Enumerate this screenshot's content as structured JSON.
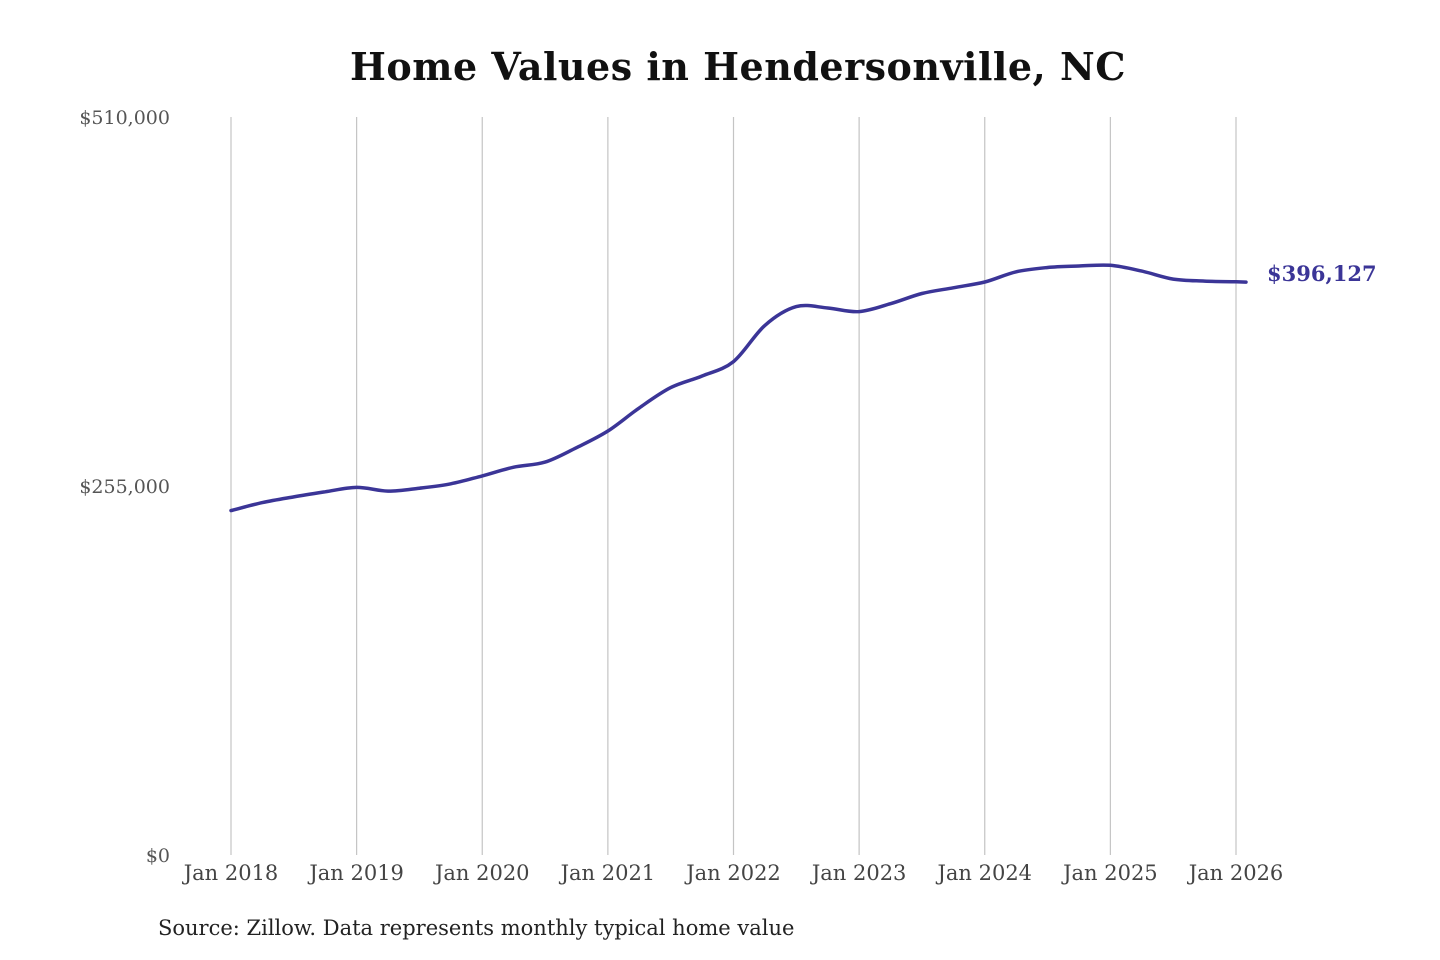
{
  "chart_data": {
    "type": "line",
    "title": "Home Values in Hendersonville, NC",
    "source": "Source: Zillow. Data represents monthly typical home value",
    "xlabel": "",
    "ylabel": "",
    "ylim": [
      0,
      510000
    ],
    "y_ticks": [
      {
        "value": 0,
        "label": "$0"
      },
      {
        "value": 255000,
        "label": "$255,000"
      },
      {
        "value": 510000,
        "label": "$510,000"
      }
    ],
    "x_ticks": [
      {
        "date": "2018-01",
        "label": "Jan 2018"
      },
      {
        "date": "2019-01",
        "label": "Jan 2019"
      },
      {
        "date": "2020-01",
        "label": "Jan 2020"
      },
      {
        "date": "2021-01",
        "label": "Jan 2021"
      },
      {
        "date": "2022-01",
        "label": "Jan 2022"
      },
      {
        "date": "2023-01",
        "label": "Jan 2023"
      },
      {
        "date": "2024-01",
        "label": "Jan 2024"
      },
      {
        "date": "2025-01",
        "label": "Jan 2025"
      },
      {
        "date": "2026-01",
        "label": "Jan 2026"
      }
    ],
    "grid": "vertical",
    "line_color": "#3b3597",
    "series": [
      {
        "name": "",
        "x": [
          "2018-01",
          "2018-04",
          "2018-07",
          "2018-10",
          "2019-01",
          "2019-04",
          "2019-07",
          "2019-10",
          "2020-01",
          "2020-04",
          "2020-07",
          "2020-10",
          "2021-01",
          "2021-04",
          "2021-07",
          "2021-10",
          "2022-01",
          "2022-04",
          "2022-07",
          "2022-10",
          "2023-01",
          "2023-04",
          "2023-07",
          "2023-10",
          "2024-01",
          "2024-04",
          "2024-07",
          "2024-10",
          "2025-01",
          "2025-04",
          "2025-07",
          "2025-10",
          "2026-01"
        ],
        "y": [
          238000,
          243500,
          247500,
          251000,
          254000,
          251500,
          253500,
          256500,
          262000,
          268000,
          271500,
          281500,
          293000,
          309000,
          323000,
          331000,
          341000,
          366000,
          379000,
          378000,
          375500,
          381000,
          388000,
          392000,
          396000,
          403000,
          406000,
          407000,
          407500,
          403500,
          398000,
          396600,
          396127
        ]
      }
    ],
    "end_label": "$396,127"
  }
}
